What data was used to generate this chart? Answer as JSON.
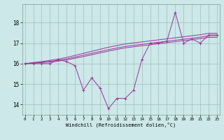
{
  "xlabel": "Windchill (Refroidissement éolien,°C)",
  "bg_color": "#cce8e8",
  "line_color": "#993399",
  "x": [
    0,
    1,
    2,
    3,
    4,
    5,
    6,
    7,
    8,
    9,
    10,
    11,
    12,
    13,
    14,
    15,
    16,
    17,
    18,
    19,
    20,
    21,
    22,
    23
  ],
  "y_actual": [
    16.0,
    16.0,
    16.0,
    16.0,
    16.2,
    16.1,
    15.9,
    14.7,
    15.3,
    14.8,
    13.8,
    14.3,
    14.3,
    14.7,
    16.2,
    17.0,
    17.0,
    17.1,
    18.5,
    17.0,
    17.2,
    17.0,
    17.4,
    17.4
  ],
  "y_trend1": [
    16.0,
    16.02,
    16.05,
    16.08,
    16.12,
    16.18,
    16.26,
    16.34,
    16.43,
    16.52,
    16.61,
    16.69,
    16.77,
    16.82,
    16.87,
    16.92,
    16.97,
    17.02,
    17.07,
    17.12,
    17.17,
    17.22,
    17.28,
    17.28
  ],
  "y_trend2": [
    16.0,
    16.03,
    16.07,
    16.11,
    16.16,
    16.23,
    16.32,
    16.41,
    16.5,
    16.59,
    16.68,
    16.76,
    16.84,
    16.89,
    16.94,
    16.99,
    17.04,
    17.09,
    17.14,
    17.19,
    17.24,
    17.29,
    17.36,
    17.36
  ],
  "y_trend3": [
    16.0,
    16.05,
    16.1,
    16.16,
    16.22,
    16.3,
    16.4,
    16.5,
    16.6,
    16.7,
    16.8,
    16.88,
    16.96,
    17.01,
    17.06,
    17.11,
    17.16,
    17.21,
    17.26,
    17.31,
    17.36,
    17.41,
    17.48,
    17.48
  ],
  "xlim": [
    -0.3,
    23.3
  ],
  "ylim": [
    13.5,
    18.9
  ],
  "yticks": [
    14,
    15,
    16,
    17,
    18
  ],
  "xticks": [
    0,
    1,
    2,
    3,
    4,
    5,
    6,
    7,
    8,
    9,
    10,
    11,
    12,
    13,
    14,
    15,
    16,
    17,
    18,
    19,
    20,
    21,
    22,
    23
  ]
}
